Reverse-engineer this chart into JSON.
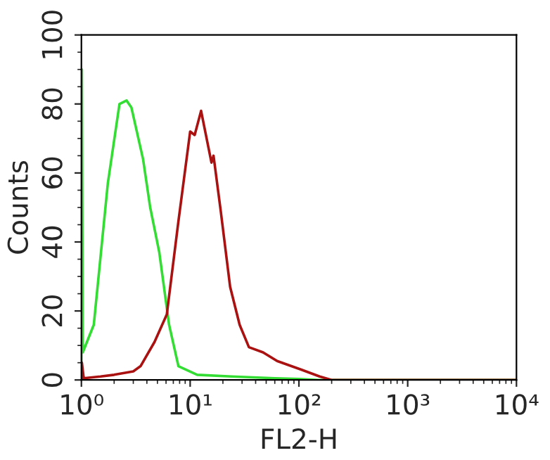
{
  "chart_data": {
    "type": "line",
    "xlabel": "FL2-H",
    "ylabel": "Counts",
    "log": "x",
    "xlim": [
      1,
      10000
    ],
    "xticks": [
      {
        "value": 1,
        "label": "10⁰"
      },
      {
        "value": 10,
        "label": "10¹"
      },
      {
        "value": 100,
        "label": "10²"
      },
      {
        "value": 1000,
        "label": "10³"
      },
      {
        "value": 10000,
        "label": "10⁴"
      }
    ],
    "ylim": [
      0,
      100
    ],
    "yticks": [
      0,
      20,
      40,
      60,
      80,
      100
    ],
    "grid": false,
    "marker": "none",
    "line_style": "solid",
    "series": [
      {
        "color": "#33dd33",
        "x": [
          1.0,
          1.01,
          1.03,
          1.3,
          1.75,
          2.24,
          2.6,
          2.88,
          3.69,
          4.29,
          5.2,
          6.4,
          7.8,
          11.6,
          24,
          60,
          100,
          150,
          10000
        ],
        "values": [
          0,
          90,
          8,
          16,
          57,
          80,
          81,
          79,
          64,
          50,
          37,
          16,
          4,
          1.5,
          1,
          0.5,
          0.3,
          0,
          0
        ]
      },
      {
        "color": "#aa1111",
        "x": [
          1.0,
          1.01,
          1.05,
          1.5,
          2,
          3,
          3.5,
          4.7,
          6.1,
          7.8,
          10,
          11,
          12.6,
          15.7,
          16.4,
          19.1,
          23.3,
          28.5,
          34.7,
          46.8,
          63,
          105,
          155,
          200,
          10000
        ],
        "values": [
          0,
          5,
          0.5,
          1,
          1.5,
          2.5,
          4,
          11,
          19,
          46,
          72,
          71,
          78,
          63,
          65,
          49,
          27,
          16,
          9.5,
          8,
          5.5,
          3,
          1,
          0,
          0
        ]
      }
    ]
  }
}
